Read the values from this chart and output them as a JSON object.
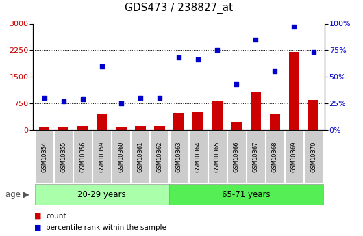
{
  "title": "GDS473 / 238827_at",
  "samples": [
    "GSM10354",
    "GSM10355",
    "GSM10356",
    "GSM10359",
    "GSM10360",
    "GSM10361",
    "GSM10362",
    "GSM10363",
    "GSM10364",
    "GSM10365",
    "GSM10366",
    "GSM10367",
    "GSM10368",
    "GSM10369",
    "GSM10370"
  ],
  "counts": [
    80,
    90,
    105,
    430,
    70,
    115,
    120,
    480,
    490,
    830,
    220,
    1050,
    430,
    2200,
    850
  ],
  "percentiles": [
    30,
    27,
    29,
    60,
    25,
    30,
    30,
    68,
    66,
    75,
    43,
    85,
    55,
    97,
    73
  ],
  "group1_label": "20-29 years",
  "group2_label": "65-71 years",
  "group1_count": 7,
  "group2_count": 8,
  "age_label": "age",
  "left_yticks": [
    0,
    750,
    1500,
    2250,
    3000
  ],
  "right_yticks": [
    0,
    25,
    50,
    75,
    100
  ],
  "ylim_left": [
    0,
    3000
  ],
  "ylim_right": [
    0,
    100
  ],
  "bar_color": "#cc0000",
  "dot_color": "#0000cc",
  "group1_bg": "#aaffaa",
  "group2_bg": "#55ee55",
  "tick_label_bg": "#cccccc",
  "legend_count_label": "count",
  "legend_pct_label": "percentile rank within the sample",
  "title_fontsize": 11,
  "tick_fontsize": 8,
  "label_fontsize": 8,
  "group_fontsize": 8.5,
  "age_fontsize": 8.5
}
